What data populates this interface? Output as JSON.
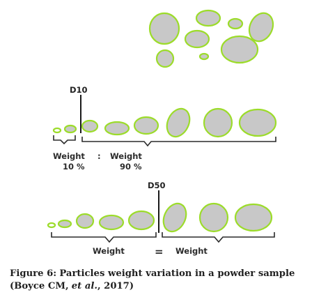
{
  "diagram": {
    "d10_label": "D10",
    "d50_label": "D50",
    "weight_left_1": "Weight",
    "colon": ":",
    "weight_right_1": "Weight",
    "pct_10": "10 %",
    "pct_90": "90 %",
    "weight_left_2": "Weight",
    "equals": "=",
    "weight_right_2": "Weight",
    "particle_fill": "#c8c8c8",
    "particle_outline": "#9cdc2a"
  },
  "caption": {
    "label": "Figure 6:",
    "text": "Particles weight variation in a powder sample (Boyce CM,",
    "etal": "et al.",
    "year": ", 2017)"
  }
}
